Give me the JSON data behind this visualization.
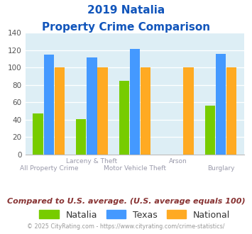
{
  "title_line1": "2019 Natalia",
  "title_line2": "Property Crime Comparison",
  "natalia": [
    47,
    41,
    85,
    0,
    56
  ],
  "texas": [
    115,
    112,
    121,
    0,
    116
  ],
  "national": [
    100,
    100,
    100,
    100,
    100
  ],
  "natalia_color": "#77cc00",
  "texas_color": "#4499ff",
  "national_color": "#ffaa22",
  "ylim": [
    0,
    140
  ],
  "yticks": [
    0,
    20,
    40,
    60,
    80,
    100,
    120,
    140
  ],
  "plot_bg": "#ddeef5",
  "title_color": "#1155bb",
  "label_color_top": "#9999aa",
  "label_color_bot": "#9999aa",
  "legend_text_color": "#333333",
  "footer_note": "Compared to U.S. average. (U.S. average equals 100)",
  "footer_note_color": "#883333",
  "copyright": "© 2025 CityRating.com - https://www.cityrating.com/crime-statistics/",
  "copyright_color": "#999999"
}
